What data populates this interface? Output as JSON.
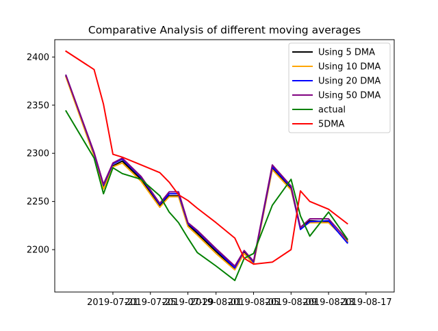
{
  "chart_data": {
    "type": "line",
    "title": "Comparative Analysis of different moving averages",
    "xlabel": "",
    "ylabel": "",
    "x_tick_labels": [
      "2019-07-21",
      "2019-07-25",
      "2019-07-29",
      "2019-08-01",
      "2019-08-05",
      "2019-08-09",
      "2019-08-13",
      "2019-08-17"
    ],
    "x_tick_positions": [
      5,
      9,
      13,
      16,
      20,
      24,
      28,
      32
    ],
    "xlim": [
      -1.2,
      35
    ],
    "y_ticks": [
      2200,
      2250,
      2300,
      2350,
      2400
    ],
    "ylim": [
      2156,
      2418
    ],
    "grid": false,
    "legend_position": "top-right",
    "x": [
      0,
      3,
      4,
      5,
      6,
      8,
      10,
      11,
      12,
      13,
      14,
      16,
      18,
      19,
      20,
      22,
      24,
      25,
      26,
      28,
      30
    ],
    "series": [
      {
        "name": "Using 5 DMA",
        "color": "#000000",
        "values": [
          2380,
          2298,
          2265,
          2287,
          2292,
          2273,
          2245,
          2256,
          2256,
          2226,
          2217,
          2198,
          2180,
          2197,
          2186,
          2284,
          2263,
          2222,
          2230,
          2229,
          2208
        ]
      },
      {
        "name": "Using 10 DMA",
        "color": "#ffa500",
        "values": [
          2379,
          2297,
          2263,
          2286,
          2290,
          2271,
          2244,
          2255,
          2255,
          2224,
          2215,
          2196,
          2179,
          2196,
          2185,
          2283,
          2262,
          2223,
          2228,
          2228,
          2209
        ]
      },
      {
        "name": "Using 20 DMA",
        "color": "#0000ff",
        "values": [
          2381,
          2300,
          2267,
          2289,
          2294,
          2275,
          2247,
          2258,
          2258,
          2227,
          2219,
          2200,
          2181,
          2199,
          2187,
          2286,
          2265,
          2221,
          2229,
          2230,
          2207
        ]
      },
      {
        "name": "Using 50 DMA",
        "color": "#800080",
        "values": [
          2381,
          2301,
          2268,
          2290,
          2295,
          2276,
          2248,
          2260,
          2260,
          2228,
          2220,
          2201,
          2183,
          2199,
          2188,
          2288,
          2266,
          2223,
          2232,
          2232,
          2210
        ]
      },
      {
        "name": "actual",
        "color": "#008000",
        "values": [
          2344,
          2295,
          2258,
          2285,
          2279,
          2273,
          2256,
          2239,
          2228,
          2212,
          2197,
          2183,
          2168,
          2191,
          2196,
          2246,
          2273,
          2235,
          2214,
          2239,
          2211
        ]
      },
      {
        "name": "5DMA",
        "color": "#ff0000",
        "values": [
          2406,
          2387,
          2351,
          2299,
          2296,
          2288,
          2280,
          2270,
          2257,
          2251,
          2243,
          2228,
          2212,
          2191,
          2185,
          2187,
          2200,
          2261,
          2250,
          2242,
          2227
        ]
      }
    ]
  }
}
